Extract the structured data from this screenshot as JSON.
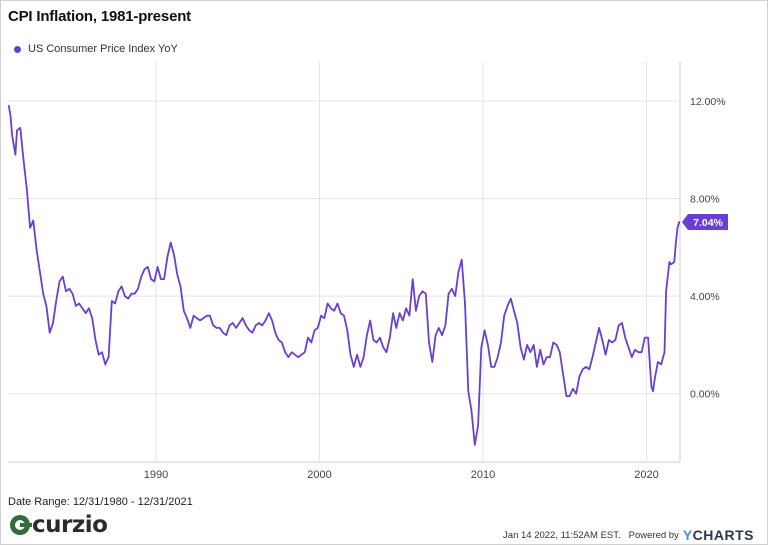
{
  "header": {
    "title": "CPI Inflation, 1981-present"
  },
  "legend": {
    "label": "US Consumer Price Index YoY"
  },
  "colors": {
    "series": "#6a3fd0",
    "grid": "#e5e5e5",
    "badge": "#6a3fd0"
  },
  "footer": {
    "date_range": "Date Range: 12/31/1980 - 12/31/2021",
    "logo_text": "curzio",
    "timestamp": "Jan 14 2022, 11:52AM EST.",
    "powered_by": "Powered by",
    "brand": "YCHARTS"
  },
  "chart_data": {
    "type": "line",
    "title": "CPI Inflation, 1981-present",
    "xlabel": "",
    "ylabel": "",
    "x_ticks": [
      "1990",
      "2000",
      "2010",
      "2020"
    ],
    "y_ticks": [
      "0.00%",
      "4.00%",
      "8.00%",
      "12.00%"
    ],
    "xlim": [
      1980.95,
      2022.05
    ],
    "ylim": [
      -2.8,
      13.6
    ],
    "grid": true,
    "y_axis_side": "right",
    "legend_position": "top-left",
    "last_value_label": "7.04%",
    "series": [
      {
        "name": "US Consumer Price Index YoY",
        "points": [
          [
            1981.0,
            11.8
          ],
          [
            1981.1,
            11.4
          ],
          [
            1981.2,
            10.6
          ],
          [
            1981.4,
            9.8
          ],
          [
            1981.5,
            10.8
          ],
          [
            1981.7,
            10.9
          ],
          [
            1981.9,
            9.6
          ],
          [
            1982.1,
            8.4
          ],
          [
            1982.3,
            6.8
          ],
          [
            1982.5,
            7.1
          ],
          [
            1982.7,
            5.9
          ],
          [
            1982.9,
            5.0
          ],
          [
            1983.1,
            4.1
          ],
          [
            1983.3,
            3.6
          ],
          [
            1983.5,
            2.5
          ],
          [
            1983.7,
            2.9
          ],
          [
            1983.9,
            3.8
          ],
          [
            1984.1,
            4.6
          ],
          [
            1984.3,
            4.8
          ],
          [
            1984.5,
            4.2
          ],
          [
            1984.7,
            4.3
          ],
          [
            1984.9,
            4.1
          ],
          [
            1985.1,
            3.6
          ],
          [
            1985.3,
            3.7
          ],
          [
            1985.5,
            3.5
          ],
          [
            1985.7,
            3.3
          ],
          [
            1985.9,
            3.5
          ],
          [
            1986.1,
            3.1
          ],
          [
            1986.3,
            2.2
          ],
          [
            1986.5,
            1.6
          ],
          [
            1986.7,
            1.7
          ],
          [
            1986.9,
            1.2
          ],
          [
            1987.1,
            1.5
          ],
          [
            1987.3,
            3.8
          ],
          [
            1987.5,
            3.7
          ],
          [
            1987.7,
            4.2
          ],
          [
            1987.9,
            4.4
          ],
          [
            1988.1,
            4.0
          ],
          [
            1988.3,
            3.9
          ],
          [
            1988.5,
            4.1
          ],
          [
            1988.7,
            4.1
          ],
          [
            1988.9,
            4.3
          ],
          [
            1989.1,
            4.8
          ],
          [
            1989.3,
            5.1
          ],
          [
            1989.5,
            5.2
          ],
          [
            1989.7,
            4.7
          ],
          [
            1989.9,
            4.6
          ],
          [
            1990.1,
            5.2
          ],
          [
            1990.3,
            4.7
          ],
          [
            1990.5,
            4.7
          ],
          [
            1990.7,
            5.6
          ],
          [
            1990.9,
            6.2
          ],
          [
            1991.1,
            5.7
          ],
          [
            1991.3,
            4.9
          ],
          [
            1991.5,
            4.4
          ],
          [
            1991.7,
            3.4
          ],
          [
            1991.9,
            3.1
          ],
          [
            1992.1,
            2.7
          ],
          [
            1992.3,
            3.2
          ],
          [
            1992.5,
            3.1
          ],
          [
            1992.7,
            3.0
          ],
          [
            1992.9,
            3.1
          ],
          [
            1993.1,
            3.2
          ],
          [
            1993.3,
            3.2
          ],
          [
            1993.5,
            2.8
          ],
          [
            1993.7,
            2.7
          ],
          [
            1993.9,
            2.7
          ],
          [
            1994.1,
            2.5
          ],
          [
            1994.3,
            2.4
          ],
          [
            1994.5,
            2.8
          ],
          [
            1994.7,
            2.9
          ],
          [
            1994.9,
            2.7
          ],
          [
            1995.1,
            2.9
          ],
          [
            1995.3,
            3.1
          ],
          [
            1995.5,
            2.8
          ],
          [
            1995.7,
            2.6
          ],
          [
            1995.9,
            2.5
          ],
          [
            1996.1,
            2.8
          ],
          [
            1996.3,
            2.9
          ],
          [
            1996.5,
            2.8
          ],
          [
            1996.7,
            3.0
          ],
          [
            1996.9,
            3.3
          ],
          [
            1997.1,
            3.0
          ],
          [
            1997.3,
            2.5
          ],
          [
            1997.5,
            2.2
          ],
          [
            1997.7,
            2.1
          ],
          [
            1997.9,
            1.7
          ],
          [
            1998.1,
            1.5
          ],
          [
            1998.3,
            1.7
          ],
          [
            1998.5,
            1.6
          ],
          [
            1998.7,
            1.5
          ],
          [
            1998.9,
            1.6
          ],
          [
            1999.1,
            1.7
          ],
          [
            1999.3,
            2.3
          ],
          [
            1999.5,
            2.1
          ],
          [
            1999.7,
            2.6
          ],
          [
            1999.9,
            2.7
          ],
          [
            2000.1,
            3.2
          ],
          [
            2000.3,
            3.1
          ],
          [
            2000.5,
            3.7
          ],
          [
            2000.7,
            3.5
          ],
          [
            2000.9,
            3.4
          ],
          [
            2001.1,
            3.7
          ],
          [
            2001.3,
            3.3
          ],
          [
            2001.5,
            3.2
          ],
          [
            2001.7,
            2.6
          ],
          [
            2001.9,
            1.6
          ],
          [
            2002.1,
            1.1
          ],
          [
            2002.3,
            1.6
          ],
          [
            2002.5,
            1.1
          ],
          [
            2002.7,
            1.5
          ],
          [
            2002.9,
            2.4
          ],
          [
            2003.1,
            3.0
          ],
          [
            2003.3,
            2.2
          ],
          [
            2003.5,
            2.1
          ],
          [
            2003.7,
            2.3
          ],
          [
            2003.9,
            1.9
          ],
          [
            2004.1,
            1.7
          ],
          [
            2004.3,
            2.3
          ],
          [
            2004.5,
            3.3
          ],
          [
            2004.7,
            2.7
          ],
          [
            2004.9,
            3.3
          ],
          [
            2005.1,
            3.0
          ],
          [
            2005.3,
            3.5
          ],
          [
            2005.5,
            3.2
          ],
          [
            2005.7,
            4.7
          ],
          [
            2005.9,
            3.4
          ],
          [
            2006.1,
            4.0
          ],
          [
            2006.3,
            4.2
          ],
          [
            2006.5,
            4.1
          ],
          [
            2006.7,
            2.1
          ],
          [
            2006.9,
            1.3
          ],
          [
            2007.1,
            2.4
          ],
          [
            2007.3,
            2.7
          ],
          [
            2007.5,
            2.4
          ],
          [
            2007.7,
            2.8
          ],
          [
            2007.9,
            4.1
          ],
          [
            2008.1,
            4.3
          ],
          [
            2008.3,
            4.0
          ],
          [
            2008.5,
            5.0
          ],
          [
            2008.7,
            5.5
          ],
          [
            2008.9,
            3.7
          ],
          [
            2009.1,
            0.1
          ],
          [
            2009.3,
            -0.7
          ],
          [
            2009.5,
            -2.1
          ],
          [
            2009.7,
            -1.3
          ],
          [
            2009.9,
            1.9
          ],
          [
            2010.1,
            2.6
          ],
          [
            2010.3,
            2.0
          ],
          [
            2010.5,
            1.1
          ],
          [
            2010.7,
            1.1
          ],
          [
            2010.9,
            1.5
          ],
          [
            2011.1,
            2.1
          ],
          [
            2011.3,
            3.2
          ],
          [
            2011.5,
            3.6
          ],
          [
            2011.7,
            3.9
          ],
          [
            2011.9,
            3.4
          ],
          [
            2012.1,
            2.9
          ],
          [
            2012.3,
            1.9
          ],
          [
            2012.5,
            1.4
          ],
          [
            2012.7,
            2.0
          ],
          [
            2012.9,
            1.7
          ],
          [
            2013.1,
            2.0
          ],
          [
            2013.3,
            1.1
          ],
          [
            2013.5,
            1.8
          ],
          [
            2013.7,
            1.2
          ],
          [
            2013.9,
            1.5
          ],
          [
            2014.1,
            1.5
          ],
          [
            2014.3,
            2.1
          ],
          [
            2014.5,
            2.0
          ],
          [
            2014.7,
            1.7
          ],
          [
            2014.9,
            0.8
          ],
          [
            2015.1,
            -0.1
          ],
          [
            2015.3,
            -0.1
          ],
          [
            2015.5,
            0.2
          ],
          [
            2015.7,
            0.0
          ],
          [
            2015.9,
            0.7
          ],
          [
            2016.1,
            1.0
          ],
          [
            2016.3,
            1.1
          ],
          [
            2016.5,
            1.0
          ],
          [
            2016.7,
            1.5
          ],
          [
            2016.9,
            2.1
          ],
          [
            2017.1,
            2.7
          ],
          [
            2017.3,
            2.2
          ],
          [
            2017.5,
            1.6
          ],
          [
            2017.7,
            2.2
          ],
          [
            2017.9,
            2.1
          ],
          [
            2018.1,
            2.2
          ],
          [
            2018.3,
            2.8
          ],
          [
            2018.5,
            2.9
          ],
          [
            2018.7,
            2.3
          ],
          [
            2018.9,
            1.9
          ],
          [
            2019.1,
            1.5
          ],
          [
            2019.3,
            1.8
          ],
          [
            2019.5,
            1.7
          ],
          [
            2019.7,
            1.7
          ],
          [
            2019.9,
            2.3
          ],
          [
            2020.1,
            2.3
          ],
          [
            2020.3,
            0.3
          ],
          [
            2020.4,
            0.1
          ],
          [
            2020.5,
            0.6
          ],
          [
            2020.7,
            1.3
          ],
          [
            2020.9,
            1.2
          ],
          [
            2021.1,
            1.7
          ],
          [
            2021.2,
            4.2
          ],
          [
            2021.4,
            5.4
          ],
          [
            2021.5,
            5.3
          ],
          [
            2021.7,
            5.4
          ],
          [
            2021.8,
            6.2
          ],
          [
            2021.9,
            6.8
          ],
          [
            2022.0,
            7.04
          ]
        ]
      }
    ]
  }
}
